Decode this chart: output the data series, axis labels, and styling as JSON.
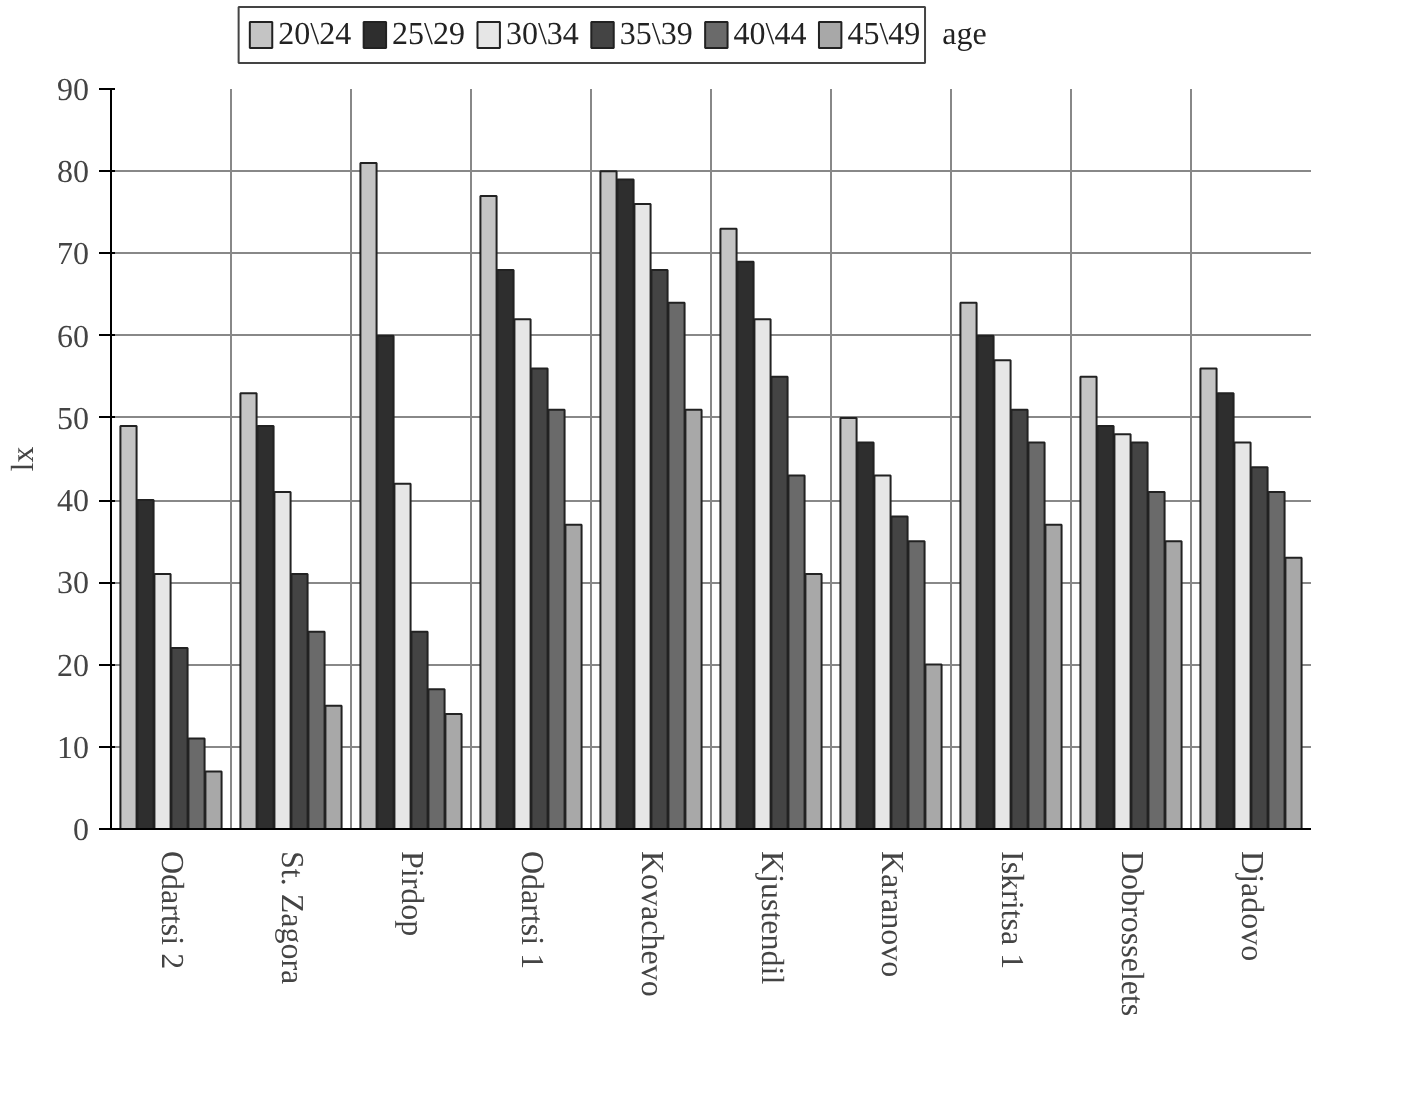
{
  "chart_data": {
    "type": "bar",
    "ylabel": "lx",
    "legend_title": "age",
    "legend": "top",
    "grid": true,
    "categories": [
      "Odartsi 2",
      "St. Zagora",
      "Pirdop",
      "Odartsi 1",
      "Kovachevo",
      "Kjustendil",
      "Karanovo",
      "Iskritsa 1",
      "Dobrosselets",
      "Djadovo"
    ],
    "ylim": [
      0,
      90
    ],
    "yticks": [
      0,
      10,
      20,
      30,
      40,
      50,
      60,
      70,
      80,
      90
    ],
    "series": [
      {
        "name": "20\\24",
        "color": "#c4c4c4",
        "values": [
          49,
          53,
          81,
          77,
          80,
          73,
          50,
          64,
          55,
          56
        ]
      },
      {
        "name": "25\\29",
        "color": "#2e2e2e",
        "values": [
          40,
          49,
          60,
          68,
          79,
          69,
          47,
          60,
          49,
          53
        ]
      },
      {
        "name": "30\\34",
        "color": "#e6e6e6",
        "values": [
          31,
          41,
          42,
          62,
          76,
          62,
          43,
          57,
          48,
          47
        ]
      },
      {
        "name": "35\\39",
        "color": "#444444",
        "values": [
          22,
          31,
          24,
          56,
          68,
          55,
          38,
          51,
          47,
          44
        ]
      },
      {
        "name": "40\\44",
        "color": "#6a6a6a",
        "values": [
          11,
          24,
          17,
          51,
          64,
          43,
          35,
          47,
          41,
          41
        ]
      },
      {
        "name": "45\\49",
        "color": "#a8a8a8",
        "values": [
          7,
          15,
          14,
          37,
          51,
          31,
          20,
          37,
          35,
          33
        ]
      }
    ]
  }
}
